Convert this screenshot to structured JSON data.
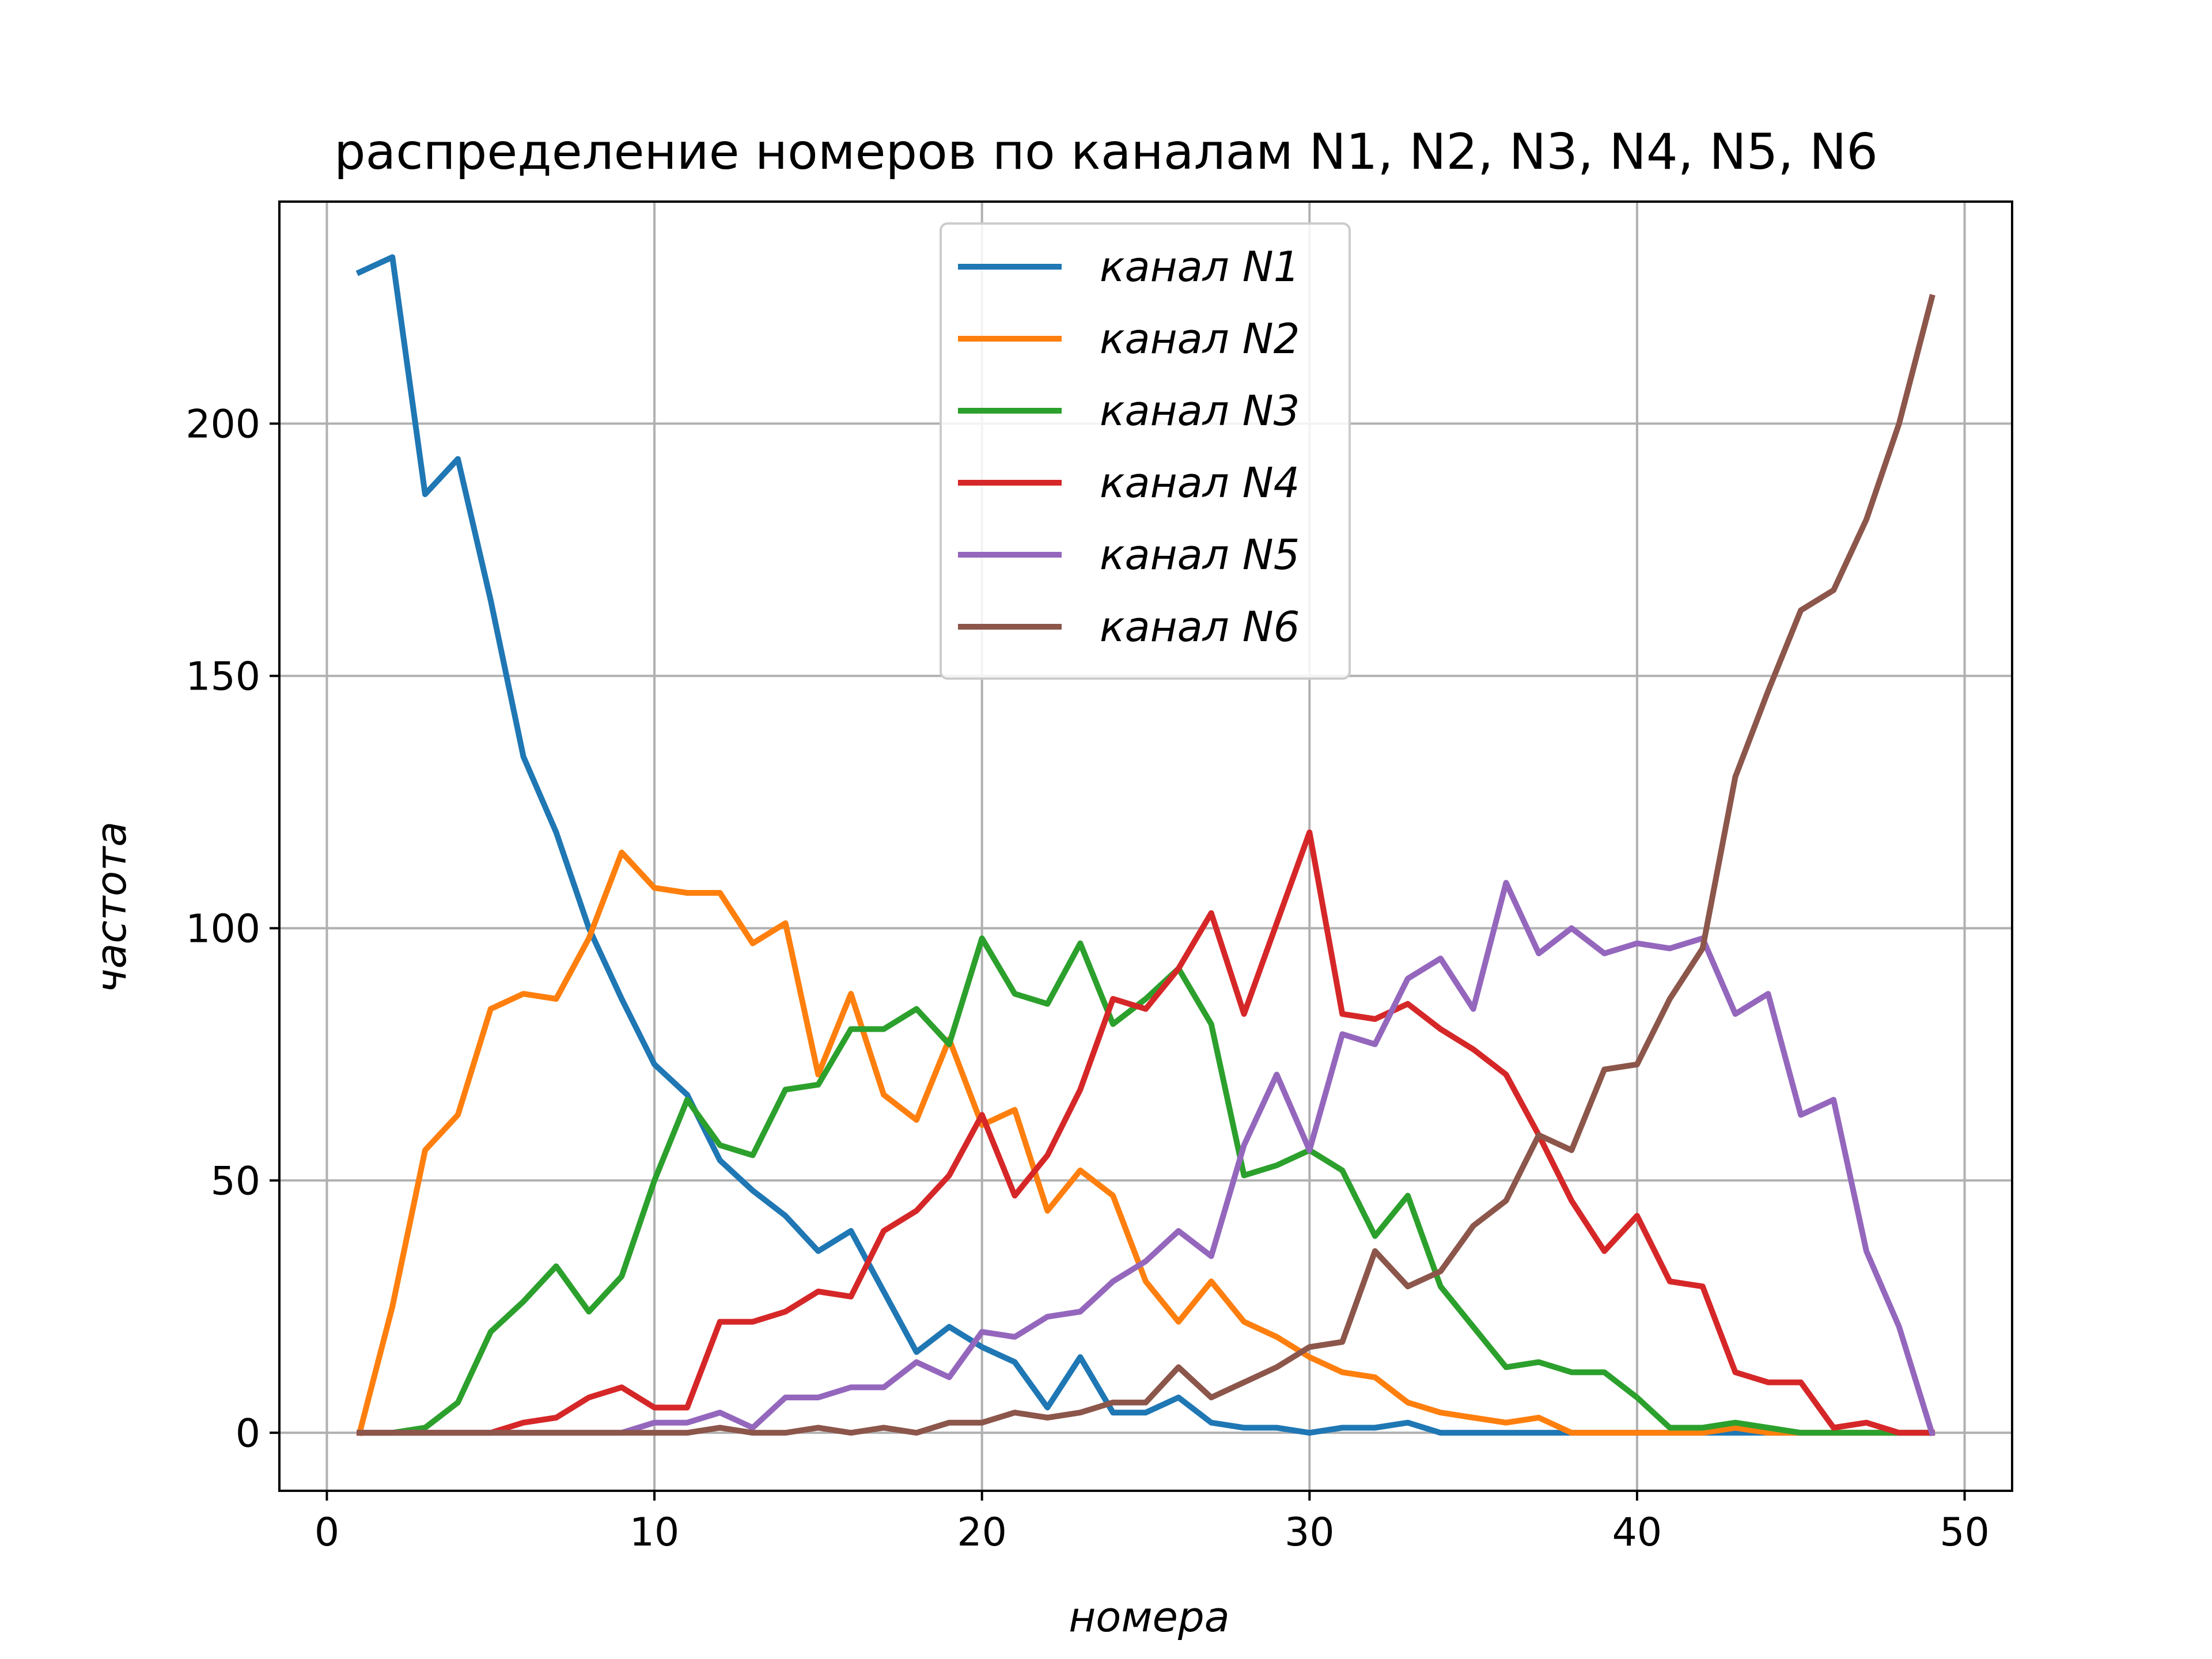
{
  "chart_data": {
    "type": "line",
    "title": "распределение номеров по каналам N1, N2, N3, N4, N5, N6",
    "xlabel": "номера",
    "ylabel": "частота",
    "xlim": [
      -1.45,
      51.45
    ],
    "ylim": [
      -11.5,
      244.0
    ],
    "xticks": [
      0,
      10,
      20,
      30,
      40,
      50
    ],
    "yticks": [
      0,
      50,
      100,
      150,
      200
    ],
    "grid": true,
    "legend_position": "top-center",
    "x": [
      1,
      2,
      3,
      4,
      5,
      6,
      7,
      8,
      9,
      10,
      11,
      12,
      13,
      14,
      15,
      16,
      17,
      18,
      19,
      20,
      21,
      22,
      23,
      24,
      25,
      26,
      27,
      28,
      29,
      30,
      31,
      32,
      33,
      34,
      35,
      36,
      37,
      38,
      39,
      40,
      41,
      42,
      43,
      44,
      45,
      46,
      47,
      48,
      49
    ],
    "series": [
      {
        "name": "канал N1",
        "color": "#1f77b4",
        "values": [
          230,
          233,
          186,
          193,
          165,
          134,
          119,
          100,
          86,
          73,
          67,
          54,
          48,
          43,
          36,
          40,
          28,
          16,
          21,
          17,
          14,
          5,
          15,
          4,
          4,
          7,
          2,
          1,
          1,
          0,
          1,
          1,
          2,
          0,
          0,
          0,
          0,
          0,
          0,
          0,
          0,
          0,
          0,
          0,
          0,
          0,
          0,
          0,
          0
        ]
      },
      {
        "name": "канал N2",
        "color": "#ff7f0e",
        "values": [
          0,
          25,
          56,
          63,
          84,
          87,
          86,
          98,
          115,
          108,
          107,
          107,
          97,
          101,
          71,
          87,
          67,
          62,
          78,
          61,
          64,
          44,
          52,
          47,
          30,
          22,
          30,
          22,
          19,
          15,
          12,
          11,
          6,
          4,
          3,
          2,
          3,
          0,
          0,
          0,
          0,
          0,
          1,
          0,
          0,
          0,
          0,
          0,
          0
        ]
      },
      {
        "name": "канал N3",
        "color": "#2ca02c",
        "values": [
          0,
          0,
          1,
          6,
          20,
          26,
          33,
          24,
          31,
          50,
          66,
          57,
          55,
          68,
          69,
          80,
          80,
          84,
          77,
          98,
          87,
          85,
          97,
          81,
          86,
          92,
          81,
          51,
          53,
          56,
          52,
          39,
          47,
          29,
          21,
          13,
          14,
          12,
          12,
          7,
          1,
          1,
          2,
          1,
          0,
          0,
          0,
          0,
          0
        ]
      },
      {
        "name": "канал N4",
        "color": "#d62728",
        "values": [
          0,
          0,
          0,
          0,
          0,
          2,
          3,
          7,
          9,
          5,
          5,
          22,
          22,
          24,
          28,
          27,
          40,
          44,
          51,
          63,
          47,
          55,
          68,
          86,
          84,
          92,
          103,
          83,
          101,
          119,
          83,
          82,
          85,
          80,
          76,
          71,
          59,
          46,
          36,
          43,
          30,
          29,
          12,
          10,
          10,
          1,
          2,
          0,
          0
        ]
      },
      {
        "name": "канал N5",
        "color": "#9467bd",
        "values": [
          0,
          0,
          0,
          0,
          0,
          0,
          0,
          0,
          0,
          2,
          2,
          4,
          1,
          7,
          7,
          9,
          9,
          14,
          11,
          20,
          19,
          23,
          24,
          30,
          34,
          40,
          35,
          57,
          71,
          56,
          79,
          77,
          90,
          94,
          84,
          109,
          95,
          100,
          95,
          97,
          96,
          98,
          83,
          87,
          63,
          66,
          36,
          21,
          0
        ]
      },
      {
        "name": "канал N6",
        "color": "#8c564b",
        "values": [
          0,
          0,
          0,
          0,
          0,
          0,
          0,
          0,
          0,
          0,
          0,
          1,
          0,
          0,
          1,
          0,
          1,
          0,
          2,
          2,
          4,
          3,
          4,
          6,
          6,
          13,
          7,
          10,
          13,
          17,
          18,
          36,
          29,
          32,
          41,
          46,
          59,
          56,
          72,
          73,
          86,
          96,
          130,
          147,
          163,
          167,
          181,
          200,
          225
        ]
      }
    ]
  }
}
